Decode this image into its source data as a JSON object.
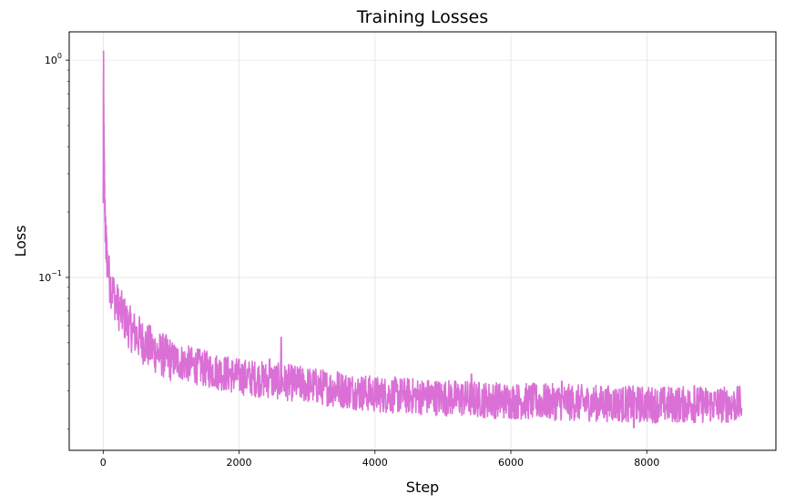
{
  "chart_data": {
    "type": "line",
    "title": "Training Losses",
    "xlabel": "Step",
    "ylabel": "Loss",
    "xlim": [
      -500,
      9900
    ],
    "ylim": [
      0.016,
      1.35
    ],
    "yscale": "log",
    "grid": true,
    "line_color": "#DA70D6",
    "x_ticks": [
      {
        "value": 0,
        "label": "0"
      },
      {
        "value": 2000,
        "label": "2000"
      },
      {
        "value": 4000,
        "label": "4000"
      },
      {
        "value": 6000,
        "label": "6000"
      },
      {
        "value": 8000,
        "label": "8000"
      }
    ],
    "y_ticks": [
      {
        "value": 0.1,
        "base": "10",
        "exp": "−1"
      },
      {
        "value": 1,
        "base": "10",
        "exp": "0"
      }
    ],
    "series": [
      {
        "points": [
          [
            0,
            0.22
          ],
          [
            5,
            1.1
          ],
          [
            10,
            0.45
          ],
          [
            20,
            0.25
          ],
          [
            30,
            0.17
          ],
          [
            40,
            0.145
          ],
          [
            60,
            0.12
          ],
          [
            80,
            0.105
          ],
          [
            100,
            0.095
          ],
          [
            150,
            0.085
          ],
          [
            200,
            0.075
          ],
          [
            300,
            0.066
          ],
          [
            400,
            0.058
          ],
          [
            600,
            0.05
          ],
          [
            800,
            0.045
          ],
          [
            1000,
            0.042
          ],
          [
            1500,
            0.038
          ],
          [
            2000,
            0.035
          ],
          [
            3000,
            0.032
          ],
          [
            4000,
            0.029
          ],
          [
            5000,
            0.028
          ],
          [
            6000,
            0.027
          ],
          [
            7000,
            0.0265
          ],
          [
            8000,
            0.026
          ],
          [
            9000,
            0.026
          ],
          [
            9400,
            0.026
          ]
        ]
      }
    ]
  }
}
